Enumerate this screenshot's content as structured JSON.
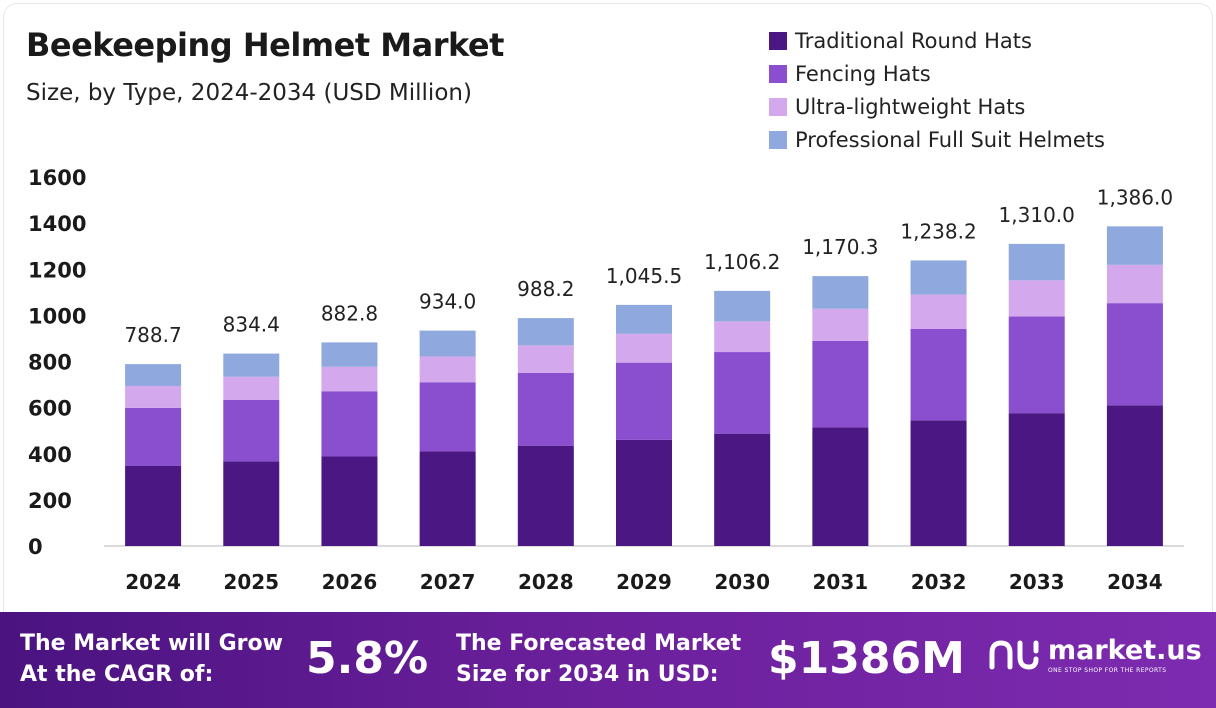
{
  "header": {
    "title": "Beekeeping Helmet Market",
    "subtitle": "Size, by Type, 2024-2034 (USD Million)"
  },
  "chart_data": {
    "type": "bar",
    "stacked": true,
    "title": "Beekeeping Helmet Market",
    "subtitle": "Size, by Type, 2024-2034 (USD Million)",
    "xlabel": "",
    "ylabel": "",
    "ylim": [
      0,
      1600
    ],
    "yticks": [
      0,
      200,
      400,
      600,
      800,
      1000,
      1200,
      1400,
      1600
    ],
    "grid": false,
    "legend_position": "top-right",
    "categories": [
      "2024",
      "2025",
      "2026",
      "2027",
      "2028",
      "2029",
      "2030",
      "2031",
      "2032",
      "2033",
      "2034"
    ],
    "series": [
      {
        "name": "Traditional Round Hats",
        "color": "#4b1782",
        "values": [
          347,
          367,
          388,
          411,
          435,
          460,
          487,
          515,
          545,
          576,
          610
        ]
      },
      {
        "name": "Fencing Hats",
        "color": "#8a4fcf",
        "values": [
          252,
          267,
          283,
          299,
          316,
          335,
          354,
          374,
          396,
          419,
          443
        ]
      },
      {
        "name": "Ultra-lightweight Hats",
        "color": "#d4a8ec",
        "values": [
          95,
          100,
          106,
          112,
          119,
          125,
          133,
          140,
          149,
          157,
          166
        ]
      },
      {
        "name": "Professional Full Suit Helmets",
        "color": "#8fa8dd",
        "values": [
          94.7,
          100.4,
          105.8,
          112.0,
          118.2,
          125.5,
          132.2,
          141.3,
          148.2,
          158.0,
          167.0
        ]
      }
    ],
    "totals": [
      788.7,
      834.4,
      882.8,
      934.0,
      988.2,
      1045.5,
      1106.2,
      1170.3,
      1238.2,
      1310.0,
      1386.0
    ],
    "total_labels": [
      "788.7",
      "834.4",
      "882.8",
      "934.0",
      "988.2",
      "1,045.5",
      "1,106.2",
      "1,170.3",
      "1,238.2",
      "1,310.0",
      "1,386.0"
    ]
  },
  "banner": {
    "cagr_text_line1": "The Market will Grow",
    "cagr_text_line2": "At the CAGR of:",
    "cagr_value": "5.8%",
    "forecast_text_line1": "The Forecasted Market",
    "forecast_text_line2": "Size for 2034 in USD:",
    "forecast_value": "$1386M",
    "brand_name": "market.us",
    "brand_tagline": "ONE STOP SHOP FOR THE REPORTS"
  }
}
